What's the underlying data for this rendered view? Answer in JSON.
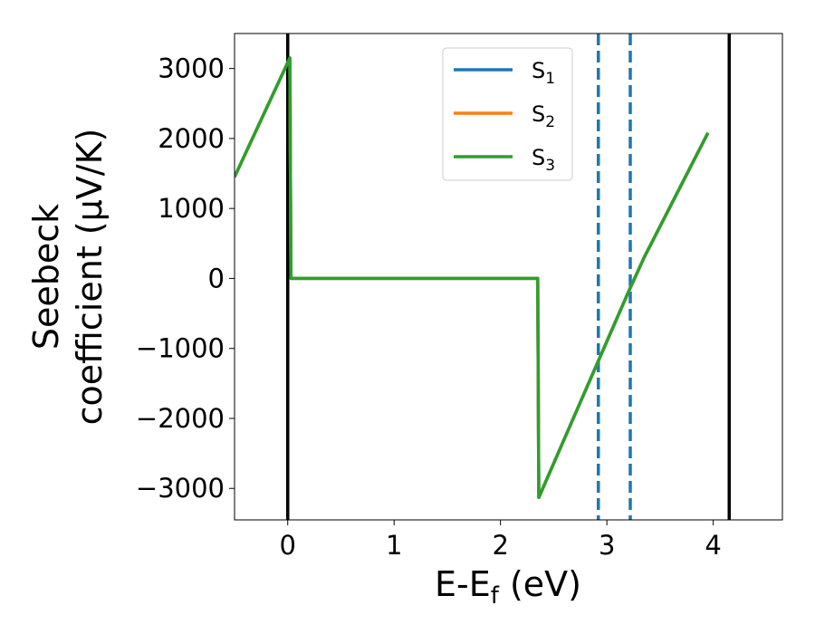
{
  "chart_data": {
    "type": "line",
    "xlabel": {
      "base": "E-E",
      "sub": "f",
      "rest": " (eV)"
    },
    "ylabel": {
      "line1": "Seebeck",
      "line2": "coefficient  (μV/K)"
    },
    "xlim": [
      -0.5,
      4.65
    ],
    "ylim": [
      -3450,
      3500
    ],
    "xticks": [
      {
        "value": 0,
        "label": "0"
      },
      {
        "value": 1,
        "label": "1"
      },
      {
        "value": 2,
        "label": "2"
      },
      {
        "value": 3,
        "label": "3"
      },
      {
        "value": 4,
        "label": "4"
      }
    ],
    "yticks": [
      {
        "value": 3000,
        "label": "3000"
      },
      {
        "value": 2000,
        "label": "2000"
      },
      {
        "value": 1000,
        "label": "1000"
      },
      {
        "value": 0,
        "label": "0"
      },
      {
        "value": -1000,
        "label": "−1000"
      },
      {
        "value": -2000,
        "label": "−2000"
      },
      {
        "value": -3000,
        "label": "−3000"
      }
    ],
    "grid": false,
    "legend_position": "top-center",
    "series": [
      {
        "name": "S",
        "sub": "1",
        "color": "#1f77b4",
        "x": [
          -0.5,
          0.02,
          0.03,
          2.35,
          2.36,
          3.2,
          3.35,
          3.95
        ],
        "y": [
          1450,
          3150,
          0,
          0,
          -3130,
          -200,
          300,
          2080
        ]
      },
      {
        "name": "S",
        "sub": "2",
        "color": "#ff7f0e",
        "x": [
          -0.5,
          0.02,
          0.03,
          2.35,
          2.36,
          3.2,
          3.35,
          3.95
        ],
        "y": [
          1450,
          3150,
          0,
          0,
          -3130,
          -200,
          300,
          2080
        ]
      },
      {
        "name": "S",
        "sub": "3",
        "color": "#2ca02c",
        "x": [
          -0.5,
          0.02,
          0.03,
          2.35,
          2.36,
          3.2,
          3.35,
          3.95
        ],
        "y": [
          1450,
          3150,
          0,
          0,
          -3130,
          -200,
          300,
          2080
        ]
      }
    ],
    "vlines": [
      {
        "x": 0.0,
        "style": "solid",
        "color": "#000000"
      },
      {
        "x": 4.15,
        "style": "solid",
        "color": "#000000"
      },
      {
        "x": 2.92,
        "style": "dashed",
        "color": "#1f77b4"
      },
      {
        "x": 3.22,
        "style": "dashed",
        "color": "#1f77b4"
      }
    ]
  }
}
